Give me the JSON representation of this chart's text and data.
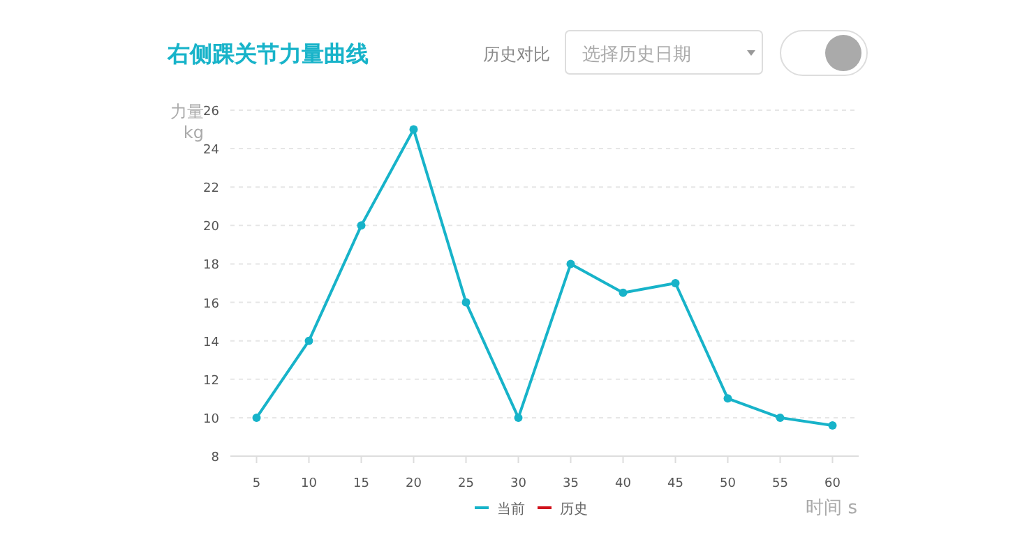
{
  "chart_data": {
    "type": "line",
    "title": "右侧踝关节力量曲线",
    "ylabel": "力量\nkg",
    "xlabel": "时间 s",
    "annotations": [
      "历史对比",
      "选择历史日期"
    ],
    "categories": [
      "5",
      "10",
      "15",
      "20",
      "25",
      "30",
      "35",
      "40",
      "45",
      "50",
      "55",
      "60"
    ],
    "series": [
      {
        "name": "当前",
        "color": "#17b3c9",
        "values": [
          10,
          14,
          20,
          25,
          16,
          10,
          18,
          16.5,
          17,
          11,
          10,
          9.6
        ]
      },
      {
        "name": "历史",
        "color": "#d0121b",
        "values": [
          null,
          null,
          null,
          null,
          null,
          null,
          null,
          null,
          null,
          null,
          null,
          null
        ]
      }
    ],
    "ylim": [
      8,
      26
    ],
    "yticks": [
      8,
      10,
      12,
      14,
      16,
      18,
      20,
      22,
      24,
      26
    ],
    "grid": "y",
    "legend": "bottom",
    "marker": "circle",
    "line_style": "solid"
  }
}
